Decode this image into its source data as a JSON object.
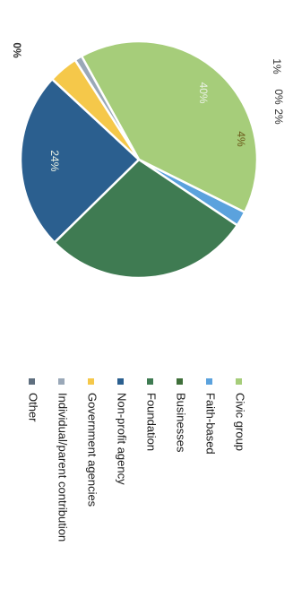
{
  "chart_data": {
    "type": "pie",
    "title": "",
    "categories": [
      "Civic group",
      "Faith-based",
      "Businesses",
      "Foundation",
      "Non-profit agency",
      "Government agencies",
      "Individual/parent contribution",
      "Other"
    ],
    "values": [
      40,
      2,
      0,
      28,
      24,
      4,
      1,
      0
    ],
    "value_labels": [
      "40%",
      "2%",
      "0%",
      "",
      "24%",
      "4%",
      "1%",
      "0%"
    ],
    "colors": [
      "#a6cd7a",
      "#5ba2dd",
      "#3f6f3a",
      "#3f7b52",
      "#2b5f8f",
      "#f5c84a",
      "#9aa8b8",
      "#5f6f7f"
    ],
    "legend_position": "bottom",
    "orientation": "rotated-90-clockwise"
  }
}
